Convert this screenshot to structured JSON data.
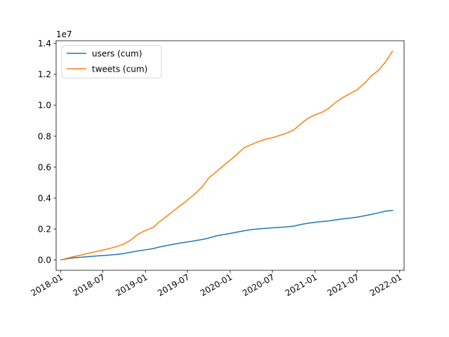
{
  "chart_data": {
    "type": "line",
    "title": "",
    "xlabel": "",
    "ylabel": "",
    "y_offset_label": "1e7",
    "xlim": [
      "2017-12-12",
      "2022-01-20"
    ],
    "ylim": [
      -0.0675,
      1.4175
    ],
    "y_ticks": [
      0.0,
      0.2,
      0.4,
      0.6,
      0.8,
      1.0,
      1.2,
      1.4
    ],
    "y_tick_labels": [
      "0.0",
      "0.2",
      "0.4",
      "0.6",
      "0.8",
      "1.0",
      "1.2",
      "1.4"
    ],
    "x_ticks": [
      "2018-01-01",
      "2018-07-01",
      "2019-01-01",
      "2019-07-01",
      "2020-01-01",
      "2020-07-01",
      "2021-01-01",
      "2021-07-01",
      "2022-01-01"
    ],
    "x_tick_labels": [
      "2018-01",
      "2018-07",
      "2019-01",
      "2019-07",
      "2020-01",
      "2020-07",
      "2021-01",
      "2021-07",
      "2022-01"
    ],
    "grid": false,
    "legend_position": "upper-left",
    "series": [
      {
        "name": "users (cum)",
        "color": "#1f77b4",
        "points": [
          [
            "2018-01-01",
            0.0
          ],
          [
            "2018-02-01",
            0.008
          ],
          [
            "2018-03-01",
            0.014
          ],
          [
            "2018-04-01",
            0.017
          ],
          [
            "2018-05-01",
            0.021
          ],
          [
            "2018-06-01",
            0.025
          ],
          [
            "2018-07-01",
            0.028
          ],
          [
            "2018-08-01",
            0.031
          ],
          [
            "2018-09-01",
            0.036
          ],
          [
            "2018-10-01",
            0.041
          ],
          [
            "2018-11-01",
            0.05
          ],
          [
            "2018-12-01",
            0.058
          ],
          [
            "2019-01-01",
            0.065
          ],
          [
            "2019-02-01",
            0.072
          ],
          [
            "2019-03-01",
            0.083
          ],
          [
            "2019-04-01",
            0.092
          ],
          [
            "2019-05-01",
            0.101
          ],
          [
            "2019-06-01",
            0.109
          ],
          [
            "2019-07-01",
            0.116
          ],
          [
            "2019-08-01",
            0.123
          ],
          [
            "2019-09-01",
            0.131
          ],
          [
            "2019-10-01",
            0.141
          ],
          [
            "2019-11-01",
            0.155
          ],
          [
            "2019-12-01",
            0.163
          ],
          [
            "2020-01-01",
            0.171
          ],
          [
            "2020-02-01",
            0.18
          ],
          [
            "2020-03-01",
            0.188
          ],
          [
            "2020-04-01",
            0.196
          ],
          [
            "2020-05-01",
            0.2
          ],
          [
            "2020-06-01",
            0.204
          ],
          [
            "2020-07-01",
            0.207
          ],
          [
            "2020-08-01",
            0.21
          ],
          [
            "2020-09-01",
            0.214
          ],
          [
            "2020-10-01",
            0.218
          ],
          [
            "2020-11-01",
            0.229
          ],
          [
            "2020-12-01",
            0.237
          ],
          [
            "2021-01-01",
            0.243
          ],
          [
            "2021-02-01",
            0.248
          ],
          [
            "2021-03-01",
            0.252
          ],
          [
            "2021-04-01",
            0.259
          ],
          [
            "2021-05-01",
            0.265
          ],
          [
            "2021-06-01",
            0.27
          ],
          [
            "2021-07-01",
            0.276
          ],
          [
            "2021-08-01",
            0.285
          ],
          [
            "2021-09-01",
            0.294
          ],
          [
            "2021-10-01",
            0.304
          ],
          [
            "2021-11-01",
            0.315
          ],
          [
            "2021-12-01",
            0.32
          ]
        ]
      },
      {
        "name": "tweets (cum)",
        "color": "#ff7f0e",
        "points": [
          [
            "2018-01-01",
            0.0
          ],
          [
            "2018-02-01",
            0.012
          ],
          [
            "2018-03-01",
            0.022
          ],
          [
            "2018-04-01",
            0.032
          ],
          [
            "2018-05-01",
            0.043
          ],
          [
            "2018-06-01",
            0.053
          ],
          [
            "2018-07-01",
            0.063
          ],
          [
            "2018-08-01",
            0.074
          ],
          [
            "2018-09-01",
            0.087
          ],
          [
            "2018-10-01",
            0.103
          ],
          [
            "2018-11-01",
            0.13
          ],
          [
            "2018-12-01",
            0.168
          ],
          [
            "2019-01-01",
            0.19
          ],
          [
            "2019-02-01",
            0.208
          ],
          [
            "2019-03-01",
            0.245
          ],
          [
            "2019-04-01",
            0.28
          ],
          [
            "2019-05-01",
            0.316
          ],
          [
            "2019-06-01",
            0.352
          ],
          [
            "2019-07-01",
            0.387
          ],
          [
            "2019-08-01",
            0.425
          ],
          [
            "2019-09-01",
            0.47
          ],
          [
            "2019-10-01",
            0.53
          ],
          [
            "2019-11-01",
            0.568
          ],
          [
            "2019-12-01",
            0.607
          ],
          [
            "2020-01-01",
            0.645
          ],
          [
            "2020-02-01",
            0.685
          ],
          [
            "2020-03-01",
            0.725
          ],
          [
            "2020-04-01",
            0.745
          ],
          [
            "2020-05-01",
            0.765
          ],
          [
            "2020-06-01",
            0.78
          ],
          [
            "2020-07-01",
            0.79
          ],
          [
            "2020-08-01",
            0.805
          ],
          [
            "2020-09-01",
            0.82
          ],
          [
            "2020-10-01",
            0.84
          ],
          [
            "2020-11-01",
            0.88
          ],
          [
            "2020-12-01",
            0.915
          ],
          [
            "2021-01-01",
            0.938
          ],
          [
            "2021-02-01",
            0.955
          ],
          [
            "2021-03-01",
            0.98
          ],
          [
            "2021-04-01",
            1.02
          ],
          [
            "2021-05-01",
            1.05
          ],
          [
            "2021-06-01",
            1.075
          ],
          [
            "2021-07-01",
            1.1
          ],
          [
            "2021-08-01",
            1.14
          ],
          [
            "2021-09-01",
            1.19
          ],
          [
            "2021-10-01",
            1.225
          ],
          [
            "2021-11-01",
            1.28
          ],
          [
            "2021-12-01",
            1.35
          ]
        ]
      }
    ]
  }
}
